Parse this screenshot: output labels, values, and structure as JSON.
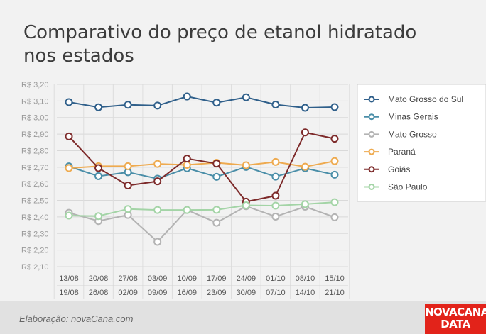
{
  "chart_data": {
    "type": "line",
    "title": "Comparativo do preço de etanol hidratado nos estados",
    "x_labels_top": [
      "13/08",
      "20/08",
      "27/08",
      "03/09",
      "10/09",
      "17/09",
      "24/09",
      "01/10",
      "08/10",
      "15/10"
    ],
    "x_labels_bottom": [
      "19/08",
      "26/08",
      "02/09",
      "09/09",
      "16/09",
      "23/09",
      "30/09",
      "07/10",
      "14/10",
      "21/10"
    ],
    "y_ticks": [
      "R$ 3,20",
      "R$ 3,10",
      "R$ 3,00",
      "R$ 2,90",
      "R$ 2,80",
      "R$ 2,70",
      "R$ 2,60",
      "R$ 2,50",
      "R$ 2,40",
      "R$ 2,30",
      "R$ 2,20",
      "R$ 2,10"
    ],
    "ylim": [
      2.1,
      3.2
    ],
    "grid": true,
    "legend_position": "right",
    "series": [
      {
        "name": "Mato Grosso do Sul",
        "color": "#2f5f8a",
        "values": [
          3.093,
          3.062,
          3.077,
          3.072,
          3.127,
          3.09,
          3.122,
          3.078,
          3.059,
          3.063
        ]
      },
      {
        "name": "Minas Gerais",
        "color": "#4a8ea8",
        "values": [
          2.705,
          2.646,
          2.67,
          2.631,
          2.694,
          2.642,
          2.702,
          2.643,
          2.694,
          2.655
        ]
      },
      {
        "name": "Mato Grosso",
        "color": "#b3b3b3",
        "values": [
          2.425,
          2.375,
          2.412,
          2.25,
          2.442,
          2.365,
          2.465,
          2.402,
          2.462,
          2.398
        ]
      },
      {
        "name": "Paraná",
        "color": "#eeaa4f",
        "values": [
          2.695,
          2.706,
          2.706,
          2.72,
          2.714,
          2.727,
          2.712,
          2.732,
          2.703,
          2.737
        ]
      },
      {
        "name": "Goiás",
        "color": "#7d2a2a",
        "values": [
          2.886,
          2.695,
          2.59,
          2.615,
          2.752,
          2.722,
          2.492,
          2.528,
          2.91,
          2.872
        ]
      },
      {
        "name": "São Paulo",
        "color": "#a3d4a6",
        "values": [
          2.408,
          2.405,
          2.448,
          2.442,
          2.442,
          2.443,
          2.47,
          2.468,
          2.477,
          2.489
        ]
      }
    ]
  },
  "footer": {
    "credit": "Elaboração: novaCana.com",
    "logo_line1": "NOVACANA",
    "logo_line2": "DATA"
  }
}
